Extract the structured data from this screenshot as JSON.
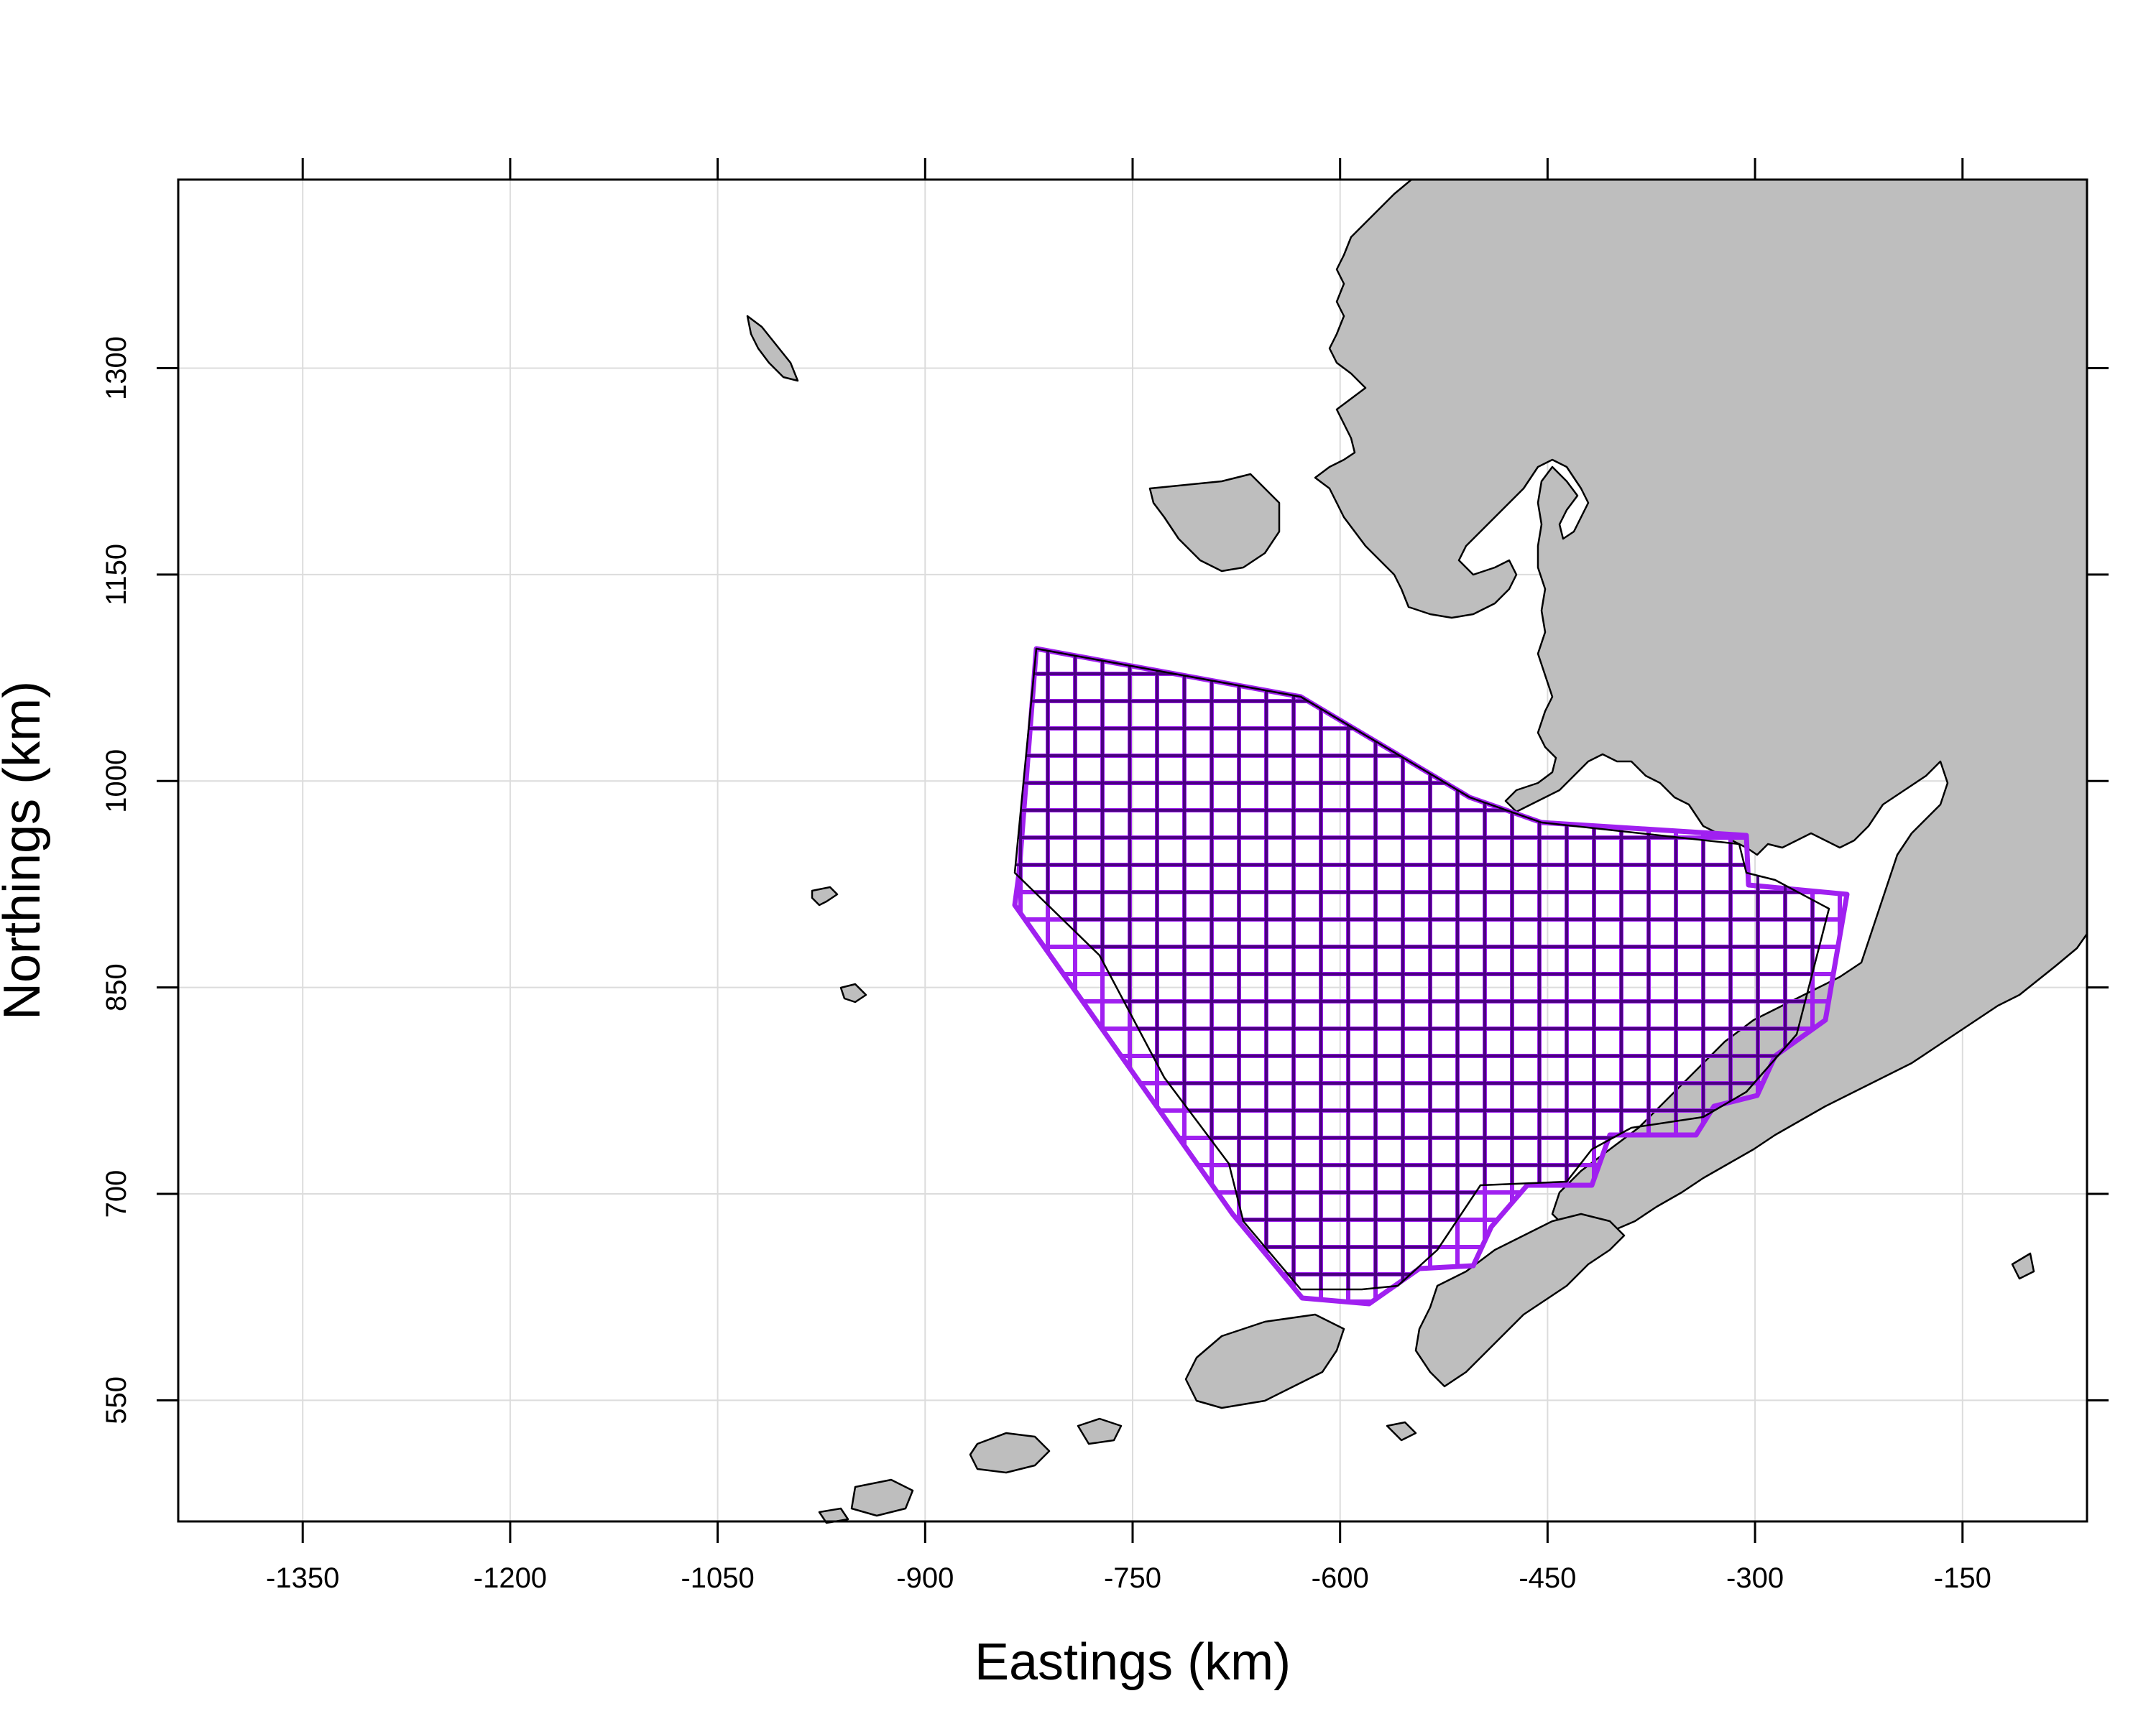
{
  "chart_data": {
    "type": "map",
    "xlabel": "Eastings (km)",
    "ylabel": "Northings (km)",
    "xlim": [
      -1440,
      -60
    ],
    "ylim": [
      462,
      1437
    ],
    "x_ticks": [
      -1350,
      -1200,
      -1050,
      -900,
      -750,
      -600,
      -450,
      -300,
      -150
    ],
    "y_ticks": [
      550,
      700,
      850,
      1000,
      1150,
      1300
    ],
    "grid": true,
    "colors": {
      "land": "#bebebe",
      "survey_outer": "#a020f0",
      "survey_inner": "#4b0082",
      "coast": "#000000"
    },
    "layers": [
      "coastline-land",
      "survey-grid-extent",
      "survey-grid-stations",
      "study-area-boundary"
    ]
  }
}
